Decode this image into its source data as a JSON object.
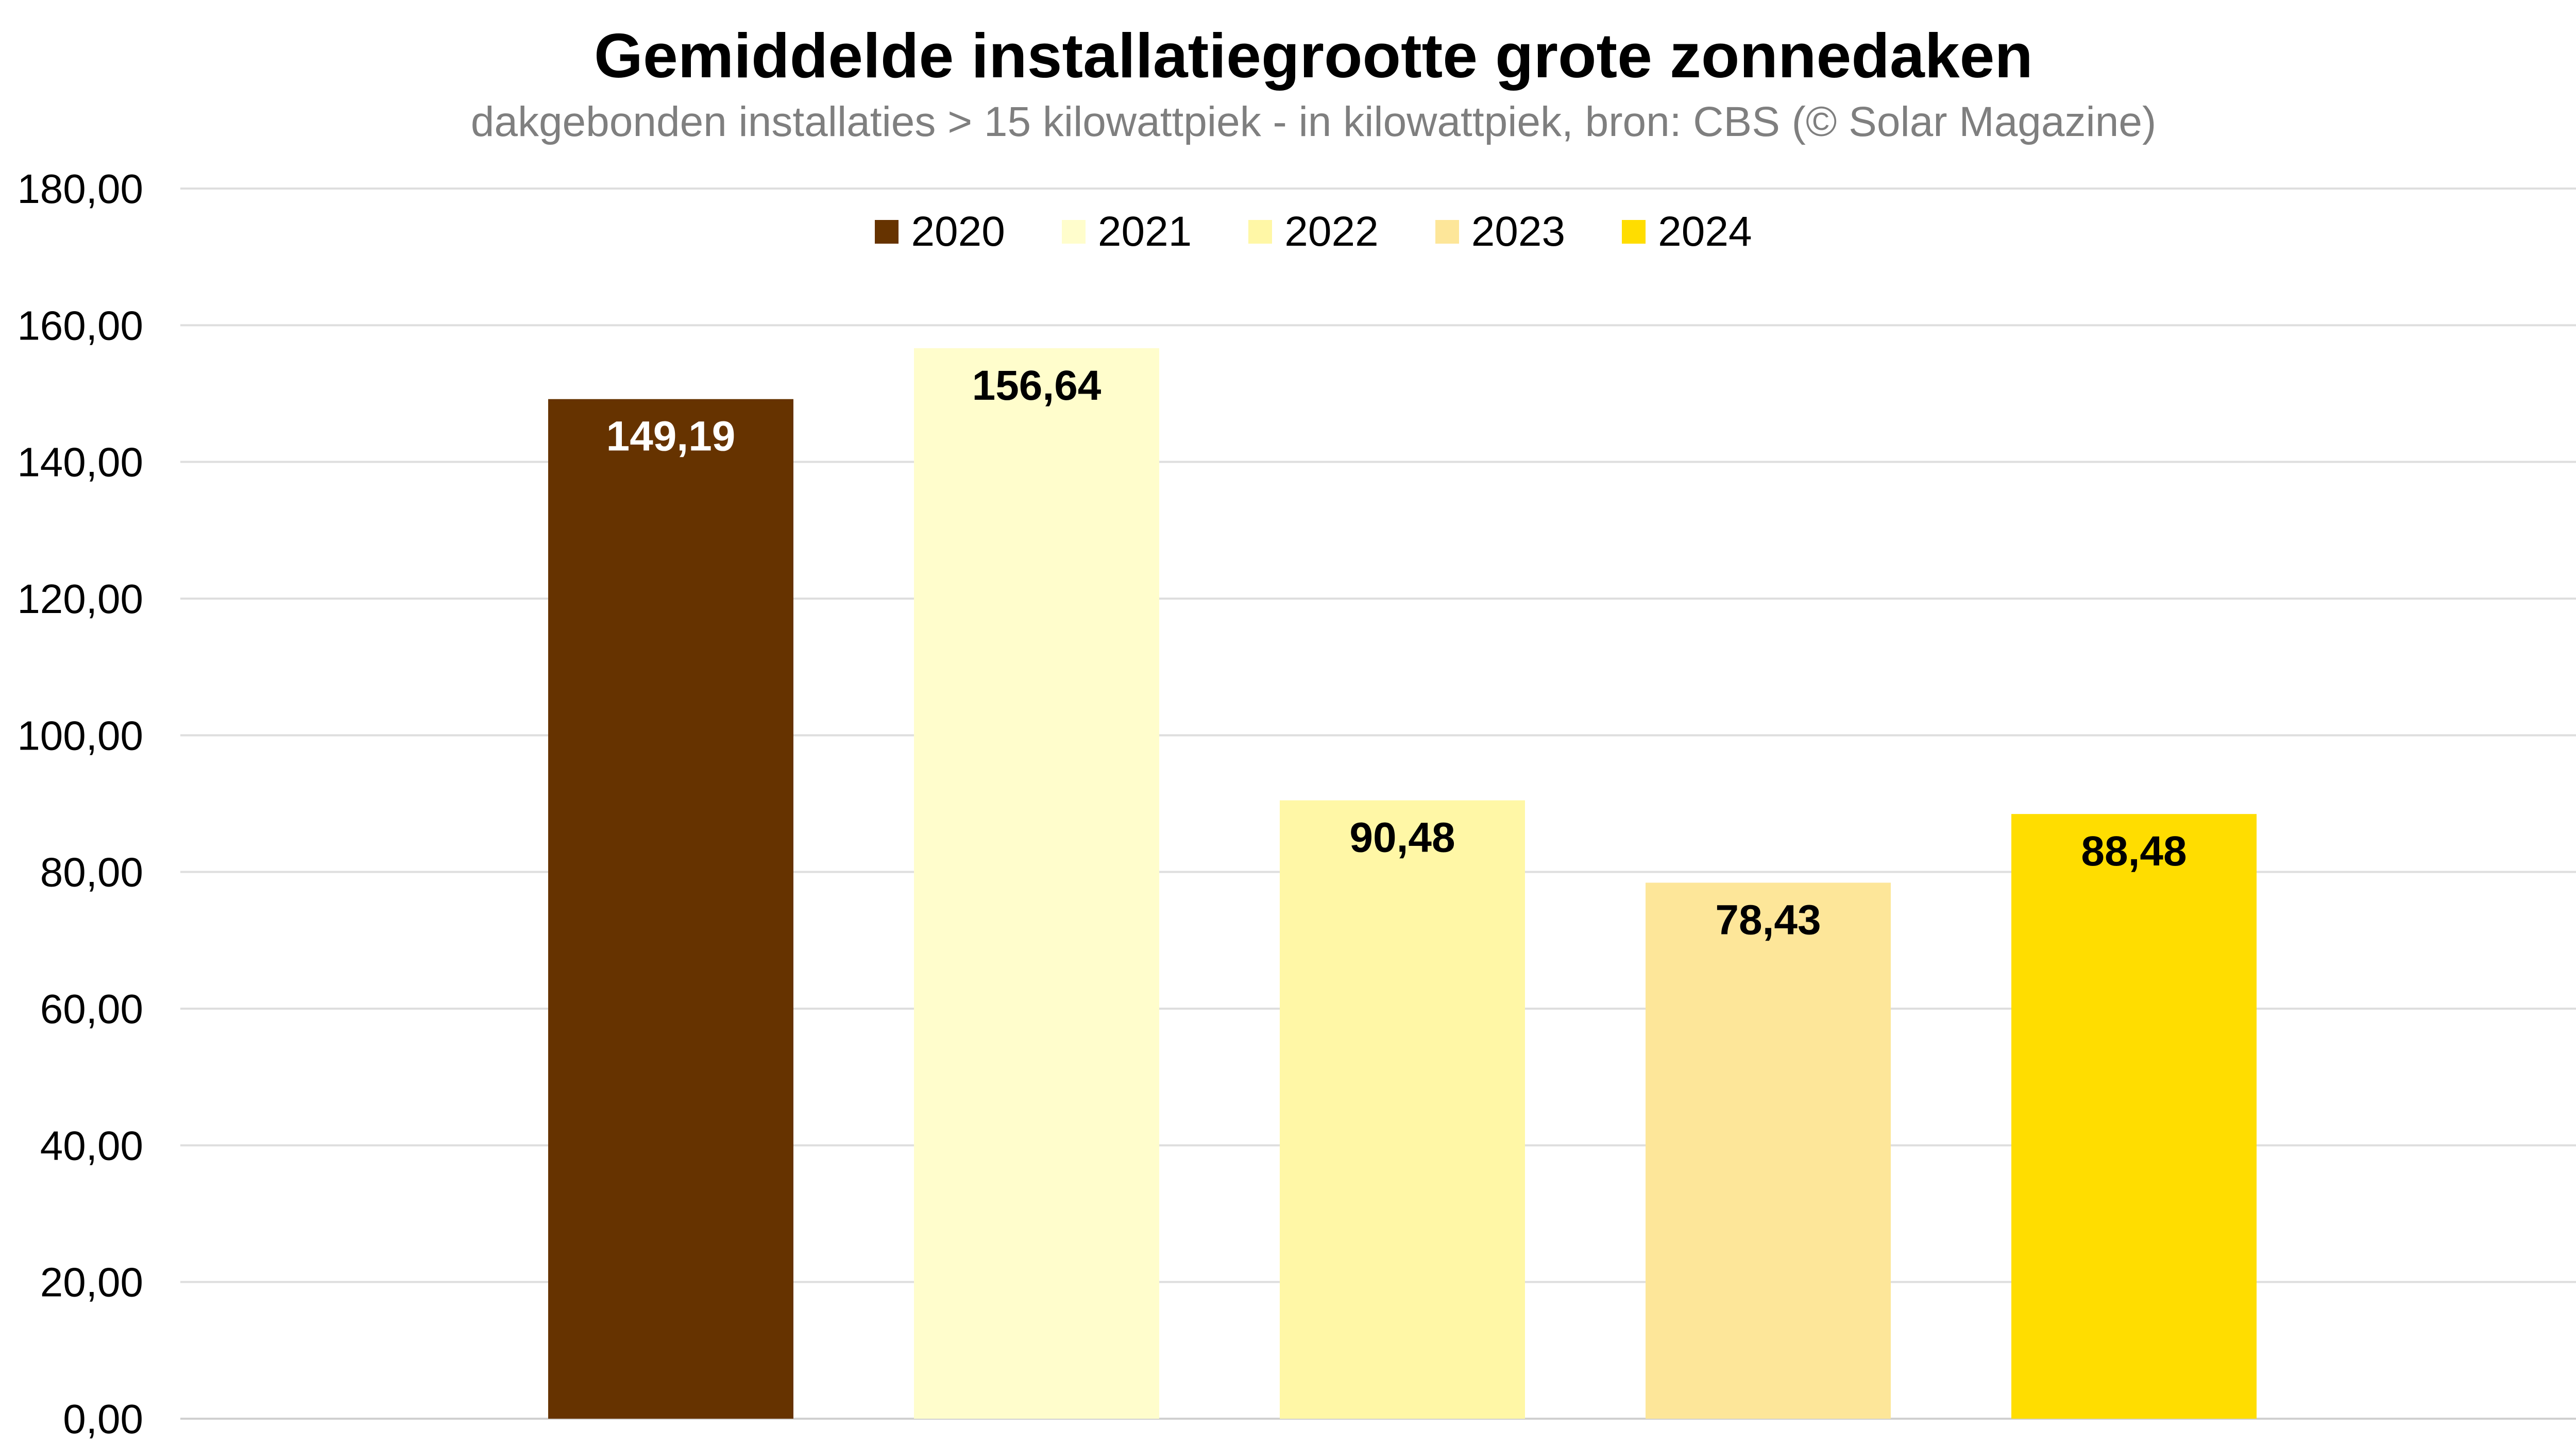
{
  "chart_data": {
    "type": "bar",
    "title": "Gemiddelde installatiegrootte grote zonnedaken",
    "subtitle": "dakgebonden installaties > 15 kilowattpiek - in kilowattpiek, bron: CBS (© Solar Magazine)",
    "categories": [
      "2020",
      "2021",
      "2022",
      "2023",
      "2024"
    ],
    "values": [
      149.19,
      156.64,
      90.48,
      78.43,
      88.48
    ],
    "value_labels": [
      "149,19",
      "156,64",
      "90,48",
      "78,43",
      "88,48"
    ],
    "colors": [
      "#663300",
      "#FFFDCC",
      "#FFF7A6",
      "#FDE699",
      "#FFDD00"
    ],
    "label_colors": [
      "#ffffff",
      "#000000",
      "#000000",
      "#000000",
      "#000000"
    ],
    "ylim": [
      0,
      180
    ],
    "yticks": [
      "0,00",
      "20,00",
      "40,00",
      "60,00",
      "80,00",
      "100,00",
      "120,00",
      "140,00",
      "160,00",
      "180,00"
    ],
    "grid": true,
    "legend_position": "top-center",
    "xlabel": "",
    "ylabel": ""
  }
}
